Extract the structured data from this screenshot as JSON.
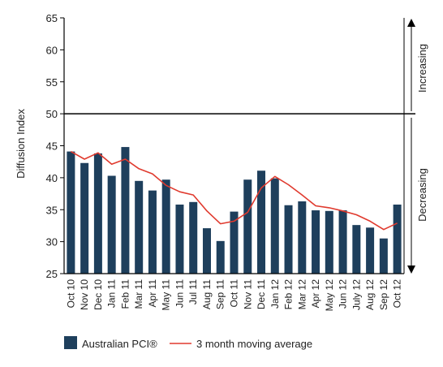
{
  "chart_data": {
    "type": "bar",
    "ylabel": "Diffusion Index",
    "ylim": [
      25,
      65
    ],
    "yticks": [
      25,
      30,
      35,
      40,
      45,
      50,
      55,
      60,
      65
    ],
    "threshold": 50,
    "categories": [
      "Oct 10",
      "Nov 10",
      "Dec 10",
      "Jan 11",
      "Feb 11",
      "Mar 11",
      "Apr 11",
      "May 11",
      "Jun 11",
      "Jul 11",
      "Aug 11",
      "Sep 11",
      "Oct 11",
      "Nov 11",
      "Dec 11",
      "Jan 12",
      "Feb 12",
      "Mar 12",
      "Apr 12",
      "May 12",
      "Jun 12",
      "July 12",
      "Aug 12",
      "Sep 12",
      "Oct 12"
    ],
    "series": [
      {
        "name": "Australian PCI®",
        "type": "bar",
        "color": "#1e3f5c",
        "values": [
          44.1,
          42.3,
          43.8,
          40.3,
          44.8,
          39.5,
          38.0,
          39.7,
          35.8,
          36.2,
          32.1,
          30.1,
          34.7,
          39.7,
          41.1,
          39.9,
          35.7,
          36.3,
          34.9,
          34.8,
          34.9,
          32.6,
          32.2,
          30.5,
          35.8
        ]
      },
      {
        "name": "3 month moving average",
        "type": "line",
        "color": "#e03a2e",
        "values": [
          44.1,
          42.9,
          43.9,
          42.1,
          42.9,
          41.4,
          40.6,
          38.8,
          37.8,
          37.3,
          34.8,
          32.8,
          33.2,
          34.6,
          38.4,
          40.2,
          38.9,
          37.3,
          35.6,
          35.3,
          34.8,
          34.2,
          33.2,
          31.9,
          32.9
        ]
      }
    ],
    "annotations": {
      "increasing": "Increasing",
      "decreasing": "Decreasing"
    }
  }
}
